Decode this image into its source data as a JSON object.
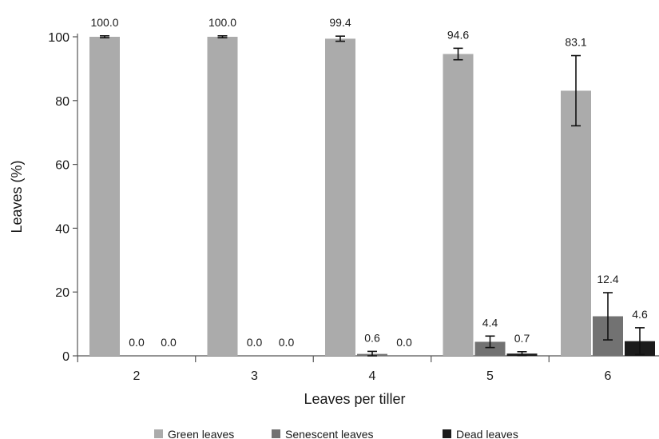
{
  "chart_data": {
    "type": "bar",
    "xlabel": "Leaves per tiller",
    "ylabel": "Leaves (%)",
    "ylim": [
      0,
      100
    ],
    "yticks": [
      0,
      20,
      40,
      60,
      80,
      100
    ],
    "categories": [
      "2",
      "3",
      "4",
      "5",
      "6"
    ],
    "grid": false,
    "legend_position": "bottom",
    "series": [
      {
        "name": "Green leaves",
        "color": "#ababab",
        "values": [
          100.0,
          100.0,
          99.4,
          94.6,
          83.1
        ],
        "labels": [
          "100.0",
          "100.0",
          "99.4",
          "94.6",
          "83.1"
        ],
        "errors": [
          0.3,
          0.3,
          0.8,
          1.8,
          11.0
        ]
      },
      {
        "name": "Senescent leaves",
        "color": "#727272",
        "values": [
          0.0,
          0.0,
          0.6,
          4.4,
          12.4
        ],
        "labels": [
          "0.0",
          "0.0",
          "0.6",
          "4.4",
          "12.4"
        ],
        "errors": [
          0,
          0,
          0.8,
          1.8,
          7.4
        ]
      },
      {
        "name": "Dead leaves",
        "color": "#1b1b1b",
        "values": [
          0.0,
          0.0,
          0.0,
          0.7,
          4.6
        ],
        "labels": [
          "0.0",
          "0.0",
          "0.0",
          "0.7",
          "4.6"
        ],
        "errors": [
          0,
          0,
          0,
          0.6,
          4.2
        ]
      }
    ]
  }
}
